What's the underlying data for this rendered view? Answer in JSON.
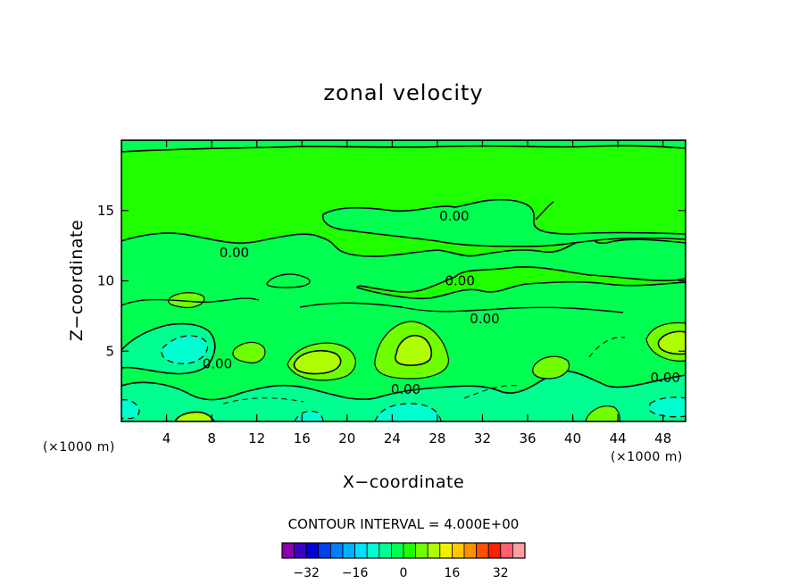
{
  "chart_data": {
    "type": "contour",
    "title": "zonal velocity",
    "xlabel": "X−coordinate",
    "ylabel": "Z−coordinate",
    "x_unit": "(×1000 m)",
    "y_unit": "(×1000 m)",
    "xlim": [
      0,
      50
    ],
    "ylim": [
      0,
      20
    ],
    "x_ticks": [
      4,
      8,
      12,
      16,
      20,
      24,
      28,
      32,
      36,
      40,
      44,
      48
    ],
    "y_ticks": [
      5,
      10,
      15
    ],
    "contour_interval_text": "CONTOUR INTERVAL = 4.000E+00",
    "contour_labels": [
      {
        "x": 10,
        "y": 12,
        "text": "0.00"
      },
      {
        "x": 29.5,
        "y": 14.6,
        "text": "0.00"
      },
      {
        "x": 30,
        "y": 10,
        "text": "0.00"
      },
      {
        "x": 32.2,
        "y": 7.3,
        "text": "0.00"
      },
      {
        "x": 8.5,
        "y": 4.1,
        "text": "0.00"
      },
      {
        "x": 25.2,
        "y": 2.3,
        "text": "0.00"
      },
      {
        "x": 48.2,
        "y": 3.1,
        "text": "0.00"
      }
    ],
    "colorbar": {
      "levels": [
        -36,
        -32,
        -28,
        -24,
        -20,
        -16,
        -12,
        -8,
        -4,
        0,
        4,
        8,
        12,
        16,
        20,
        24,
        28,
        32,
        36
      ],
      "tick_labels": [
        "−32",
        "−16",
        "0",
        "16",
        "32"
      ],
      "tick_values": [
        -32,
        -16,
        0,
        16,
        32
      ],
      "colors": [
        "#8b00b0",
        "#3c00c0",
        "#0000d8",
        "#0040f0",
        "#0080ff",
        "#00b0ff",
        "#00e0ff",
        "#00ffd0",
        "#00ff90",
        "#00ff50",
        "#20ff00",
        "#70ff00",
        "#b0ff00",
        "#f0f000",
        "#ffc800",
        "#ff9000",
        "#ff5000",
        "#ff2000",
        "#ff6070",
        "#ffa0a0"
      ]
    },
    "features": [
      {
        "kind": "maximum",
        "x": 17.5,
        "y": 4.3,
        "band": "8 to 12"
      },
      {
        "kind": "maximum",
        "x": 25.5,
        "y": 5.0,
        "band": "8 to 12"
      },
      {
        "kind": "maximum",
        "x": 49.0,
        "y": 5.5,
        "band": "8 to 12"
      },
      {
        "kind": "minimum",
        "x": 6.5,
        "y": 5.0,
        "band": "-8 to -4"
      },
      {
        "kind": "minimum",
        "x": 25.5,
        "y": 0.5,
        "band": "-8 to -4"
      },
      {
        "kind": "minimum",
        "x": 48.5,
        "y": 1.5,
        "band": "-8 to -4"
      }
    ]
  }
}
